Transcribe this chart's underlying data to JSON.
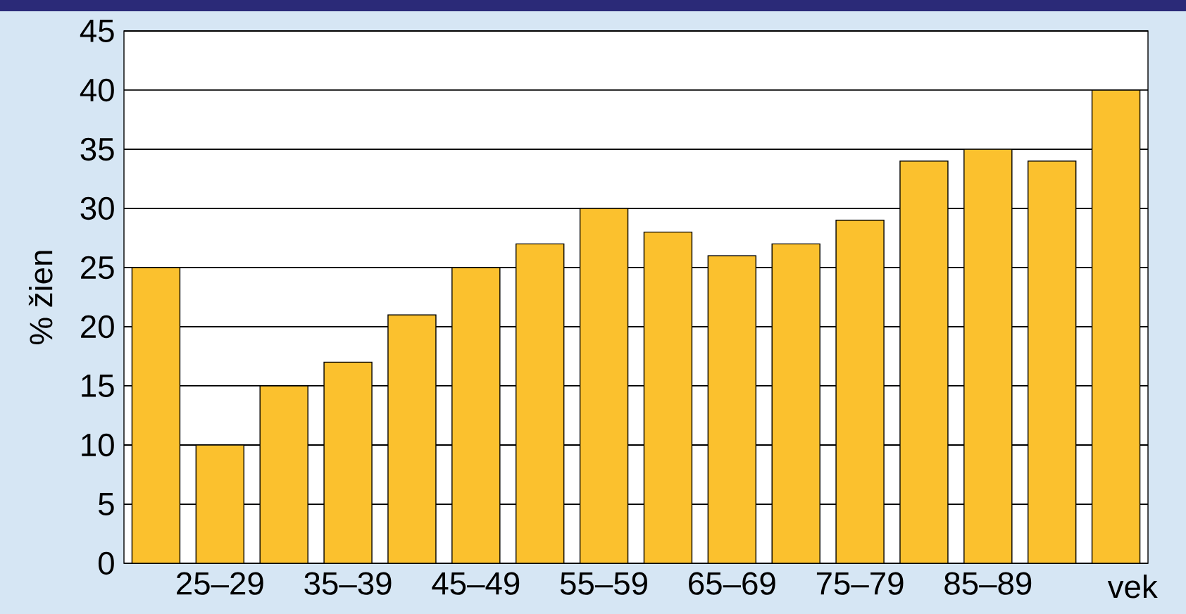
{
  "chart_data": {
    "type": "bar",
    "xlabel": "vek",
    "ylabel": "% žien",
    "categories": [
      null,
      "25–29",
      null,
      "35–39",
      null,
      "45–49",
      null,
      "55–59",
      null,
      "65–69",
      null,
      "75–79",
      null,
      "85–89",
      null,
      null
    ],
    "values": [
      25,
      10,
      15,
      17,
      21,
      25,
      27,
      30,
      28,
      26,
      27,
      29,
      34,
      35,
      34,
      40
    ],
    "color": "#fbc12e",
    "ylim": [
      0,
      45
    ],
    "yticks": [
      0,
      5,
      10,
      15,
      20,
      25,
      30,
      35,
      40,
      45
    ],
    "grid": "y"
  }
}
